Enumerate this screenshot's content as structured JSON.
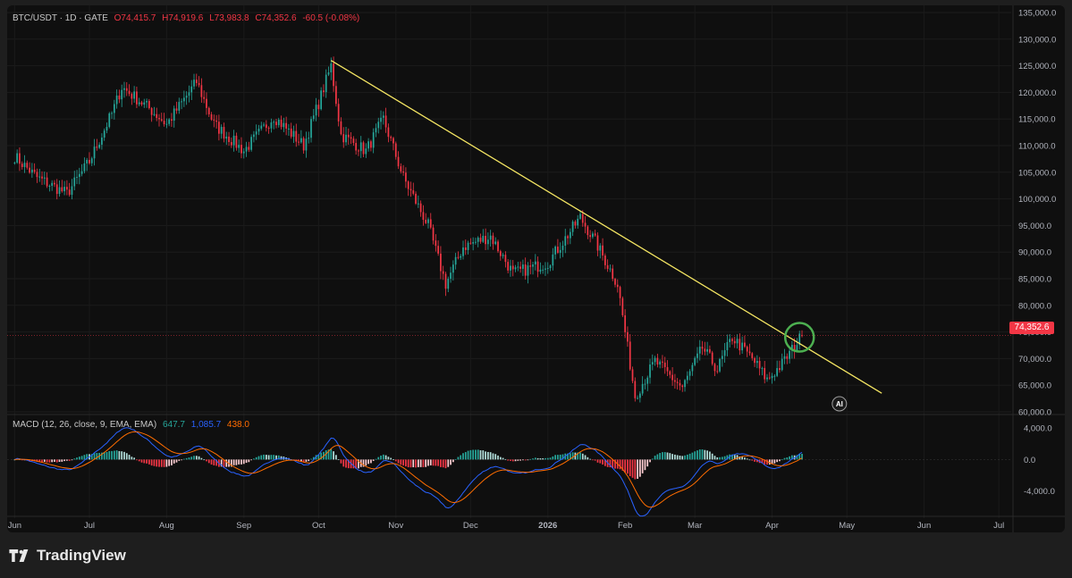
{
  "legend": {
    "symbol": "BTC/USDT · 1D · GATE",
    "open": "O74,415.7",
    "high": "H74,919.6",
    "low": "L73,983.8",
    "close": "C74,352.6",
    "change": "-60.5 (-0.08%)"
  },
  "macd_legend": {
    "label": "MACD (12, 26, close, 9, EMA, EMA)",
    "histogram": "647.7",
    "macd": "1,085.7",
    "signal": "438.0"
  },
  "current_price_label": "74,352.6",
  "ai_badge": "AI",
  "brand": "TradingView",
  "colors": {
    "background": "#0f0f0f",
    "up": "#26a69a",
    "down": "#f23645",
    "trendline": "#f5e663",
    "circle": "#4caf50",
    "macd_line": "#2962ff",
    "signal_line": "#ff6d00"
  },
  "chart_data": [
    {
      "type": "candlestick",
      "title": "BTC/USDT 1D GATE",
      "ylim": [
        60000,
        135000
      ],
      "price_ticks": [
        "135,000.0",
        "130,000.0",
        "125,000.0",
        "120,000.0",
        "115,000.0",
        "110,000.0",
        "105,000.0",
        "100,000.0",
        "95,000.0",
        "90,000.0",
        "85,000.0",
        "80,000.0",
        "75,000.0",
        "70,000.0",
        "65,000.0",
        "60,000.0"
      ],
      "x_ticks": [
        "Jun",
        "Jul",
        "Aug",
        "Sep",
        "Oct",
        "Nov",
        "Dec",
        "2026",
        "Feb",
        "Mar",
        "Apr",
        "May",
        "Jun",
        "Jul"
      ],
      "trend_shape": [
        [
          "2025-06-01",
          108000
        ],
        [
          "2025-06-10",
          104000
        ],
        [
          "2025-06-22",
          101000
        ],
        [
          "2025-07-01",
          107000
        ],
        [
          "2025-07-10",
          116000
        ],
        [
          "2025-07-14",
          121000
        ],
        [
          "2025-07-25",
          117000
        ],
        [
          "2025-08-01",
          114000
        ],
        [
          "2025-08-13",
          122000
        ],
        [
          "2025-08-20",
          114000
        ],
        [
          "2025-09-01",
          109000
        ],
        [
          "2025-09-13",
          115500
        ],
        [
          "2025-09-25",
          110000
        ],
        [
          "2025-10-01",
          118000
        ],
        [
          "2025-10-06",
          125000
        ],
        [
          "2025-10-10",
          112000
        ],
        [
          "2025-10-20",
          109000
        ],
        [
          "2025-10-27",
          115000
        ],
        [
          "2025-11-04",
          104000
        ],
        [
          "2025-11-14",
          95000
        ],
        [
          "2025-11-21",
          84000
        ],
        [
          "2025-11-28",
          91000
        ],
        [
          "2025-12-09",
          93000
        ],
        [
          "2025-12-18",
          86000
        ],
        [
          "2026-01-01",
          88000
        ],
        [
          "2026-01-14",
          96500
        ],
        [
          "2026-01-20",
          92000
        ],
        [
          "2026-01-29",
          84000
        ],
        [
          "2026-02-05",
          63000
        ],
        [
          "2026-02-13",
          69500
        ],
        [
          "2026-02-24",
          64500
        ],
        [
          "2026-03-04",
          72000
        ],
        [
          "2026-03-10",
          68000
        ],
        [
          "2026-03-16",
          74000
        ],
        [
          "2026-03-24",
          70000
        ],
        [
          "2026-03-30",
          66000
        ],
        [
          "2026-04-05",
          69000
        ],
        [
          "2026-04-13",
          74352.6
        ]
      ],
      "last": {
        "open": 74415.7,
        "high": 74919.6,
        "low": 73983.8,
        "close": 74352.6,
        "change": -60.5,
        "change_pct": -0.08
      },
      "trendline": {
        "start": [
          "2025-10-06",
          126000
        ],
        "end": [
          "2026-05-15",
          63500
        ]
      },
      "highlight": {
        "date": "2026-04-12",
        "price": 74000
      }
    },
    {
      "type": "macd",
      "params": "12, 26, close, 9, EMA, EMA",
      "ylim": [
        -7000,
        5500
      ],
      "ticks": [
        "4,000.0",
        "0.0",
        "-4,000.0"
      ],
      "last": {
        "histogram": 647.7,
        "macd": 1085.7,
        "signal": 438.0
      }
    }
  ]
}
